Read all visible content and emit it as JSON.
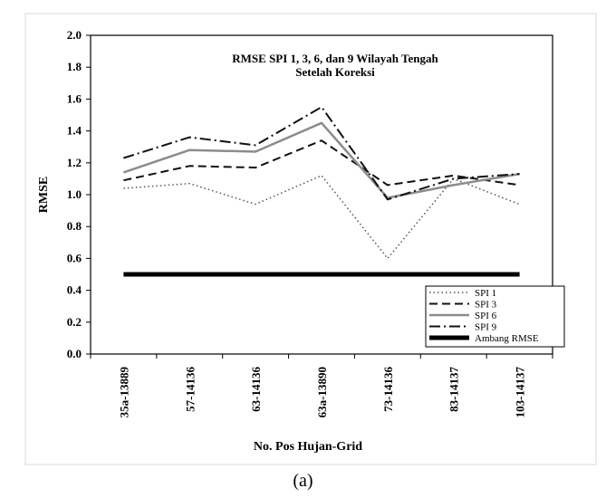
{
  "chart_data": {
    "type": "line",
    "title": "RMSE  SPI 1, 3, 6, dan 9 Wilayah Tengah",
    "subtitle": "Setelah Koreksi",
    "xlabel": "No. Pos Hujan-Grid",
    "ylabel": "RMSE",
    "ylim": [
      0.0,
      2.0
    ],
    "yticks": [
      "0.0",
      "0.2",
      "0.4",
      "0.6",
      "0.8",
      "1.0",
      "1.2",
      "1.4",
      "1.6",
      "1.8",
      "2.0"
    ],
    "categories": [
      "35a-13889",
      "57-14136",
      "63-14136",
      "63a-13890",
      "73-14136",
      "83-14137",
      "103-14137"
    ],
    "series": [
      {
        "name": "SPI 1",
        "values": [
          1.04,
          1.07,
          0.94,
          1.12,
          0.6,
          1.1,
          0.94
        ],
        "dash": "1.5,3",
        "color": "#555555",
        "width": 1.5
      },
      {
        "name": "SPI 3",
        "values": [
          1.09,
          1.18,
          1.17,
          1.34,
          1.06,
          1.12,
          1.06
        ],
        "dash": "9,5",
        "color": "#111111",
        "width": 2
      },
      {
        "name": "SPI 6",
        "values": [
          1.14,
          1.28,
          1.27,
          1.45,
          0.98,
          1.06,
          1.13
        ],
        "dash": "",
        "color": "#8c8c8c",
        "width": 2.5
      },
      {
        "name": "SPI 9",
        "values": [
          1.23,
          1.36,
          1.31,
          1.55,
          0.97,
          1.1,
          1.13
        ],
        "dash": "12,4,2,4",
        "color": "#111111",
        "width": 2
      },
      {
        "name": "Ambang RMSE",
        "values": [
          0.5,
          0.5,
          0.5,
          0.5,
          0.5,
          0.5,
          0.5
        ],
        "dash": "",
        "color": "#000000",
        "width": 5
      }
    ],
    "legend_position": "bottom-right",
    "grid": false
  },
  "caption": "(a)"
}
